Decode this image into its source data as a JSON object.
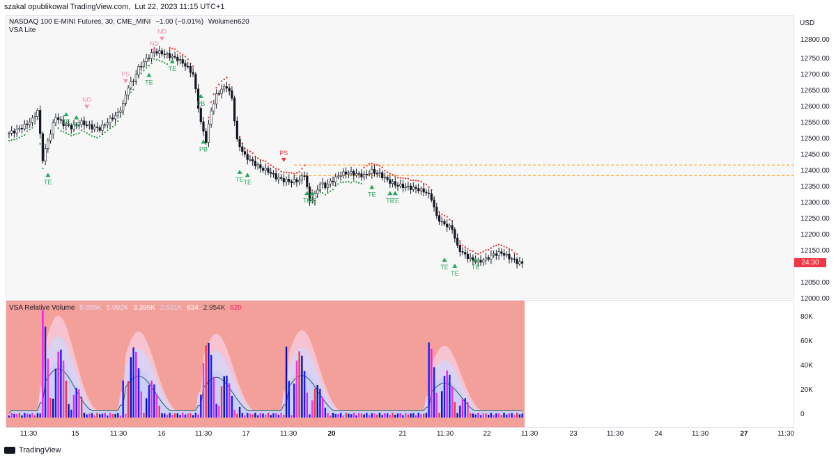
{
  "header": {
    "author": "szakal opublikował TradingView.com,",
    "timestamp": "Lut 22, 2023 11:15 UTC+1"
  },
  "main_legend": {
    "symbol": "NASDAQ 100 E-MINI Futures, 30, CME_MINI",
    "change": "−1.00 (−0.01%)",
    "volume": "Wolumen620",
    "indicator": "VSA Lite"
  },
  "volume_legend": {
    "title": "VSA Relative Volume",
    "values": [
      "5.955K",
      "5.092K",
      "3.395K",
      "2.531K",
      "834",
      "2.954K",
      "620"
    ]
  },
  "price_axis": {
    "currency": "USD",
    "ticks": [
      "12800.00",
      "12750.00",
      "12700.00",
      "12650.00",
      "12600.00",
      "12550.00",
      "12500.00",
      "12450.00",
      "12400.00",
      "12350.00",
      "12300.00",
      "12250.00",
      "12200.00",
      "12150.00",
      "12050.00",
      "12000.00"
    ],
    "last_badge": "24:30"
  },
  "volume_axis": {
    "ticks": [
      "80K",
      "60K",
      "40K",
      "20K",
      "0"
    ]
  },
  "time_axis": {
    "ticks": [
      "11:30",
      "15",
      "11:30",
      "16",
      "11:30",
      "17",
      "11:30",
      "20",
      "21",
      "11:30",
      "22",
      "11:30",
      "23",
      "11:30",
      "24",
      "11:30",
      "27",
      "11:30"
    ],
    "bold": [
      "20",
      "27"
    ]
  },
  "footer": {
    "brand": "TradingView"
  },
  "colors": {
    "up_signal": "#26a65b",
    "down_signal": "#f23645",
    "trail_up": "#2e9e4a",
    "trail_down": "#e53935",
    "vol_bg": "#f4a09a",
    "resistance": "#ff9800"
  },
  "chart_data": [
    {
      "type": "line",
      "title": "NASDAQ 100 E-MINI Futures, 30, CME_MINI",
      "ylim": [
        12000,
        12850
      ],
      "close_path": [
        [
          0,
          12525
        ],
        [
          3,
          12535
        ],
        [
          6,
          12550
        ],
        [
          9,
          12570
        ],
        [
          11,
          12600
        ],
        [
          13,
          12440
        ],
        [
          15,
          12500
        ],
        [
          18,
          12580
        ],
        [
          21,
          12555
        ],
        [
          24,
          12545
        ],
        [
          28,
          12560
        ],
        [
          32,
          12545
        ],
        [
          35,
          12540
        ],
        [
          39,
          12570
        ],
        [
          42,
          12590
        ],
        [
          44,
          12620
        ],
        [
          46,
          12680
        ],
        [
          48,
          12700
        ],
        [
          50,
          12740
        ],
        [
          53,
          12770
        ],
        [
          56,
          12795
        ],
        [
          59,
          12790
        ],
        [
          62,
          12780
        ],
        [
          65,
          12770
        ],
        [
          68,
          12750
        ],
        [
          71,
          12720
        ],
        [
          74,
          12560
        ],
        [
          76,
          12500
        ],
        [
          78,
          12600
        ],
        [
          80,
          12650
        ],
        [
          82,
          12670
        ],
        [
          84,
          12680
        ],
        [
          86,
          12640
        ],
        [
          88,
          12500
        ],
        [
          91,
          12450
        ],
        [
          94,
          12430
        ],
        [
          97,
          12410
        ],
        [
          100,
          12400
        ],
        [
          103,
          12380
        ],
        [
          106,
          12370
        ],
        [
          109,
          12365
        ],
        [
          112,
          12370
        ],
        [
          114,
          12390
        ],
        [
          116,
          12300
        ],
        [
          118,
          12320
        ],
        [
          120,
          12360
        ],
        [
          122,
          12350
        ],
        [
          125,
          12370
        ],
        [
          128,
          12390
        ],
        [
          131,
          12395
        ],
        [
          134,
          12390
        ],
        [
          137,
          12385
        ],
        [
          140,
          12400
        ],
        [
          143,
          12390
        ],
        [
          146,
          12370
        ],
        [
          149,
          12355
        ],
        [
          152,
          12350
        ],
        [
          155,
          12345
        ],
        [
          158,
          12340
        ],
        [
          161,
          12330
        ],
        [
          163,
          12310
        ],
        [
          165,
          12250
        ],
        [
          167,
          12230
        ],
        [
          169,
          12220
        ],
        [
          171,
          12210
        ],
        [
          173,
          12150
        ],
        [
          175,
          12130
        ],
        [
          178,
          12110
        ],
        [
          181,
          12100
        ],
        [
          184,
          12110
        ],
        [
          187,
          12125
        ],
        [
          190,
          12130
        ],
        [
          193,
          12115
        ],
        [
          196,
          12100
        ],
        [
          198,
          12095
        ]
      ],
      "signals": [
        {
          "label": "TE",
          "x": 15,
          "price": 12390,
          "dir": "up"
        },
        {
          "label": "TE",
          "x": 22,
          "price": 12590,
          "dir": "up"
        },
        {
          "label": "TE",
          "x": 26,
          "price": 12580,
          "dir": "up"
        },
        {
          "label": "ND",
          "x": 30,
          "price": 12605,
          "dir": "down"
        },
        {
          "label": "PS",
          "x": 45,
          "price": 12690,
          "dir": "down"
        },
        {
          "label": "TE",
          "x": 54,
          "price": 12720,
          "dir": "up"
        },
        {
          "label": "ND",
          "x": 56,
          "price": 12790,
          "dir": "down"
        },
        {
          "label": "ND",
          "x": 59,
          "price": 12830,
          "dir": "down"
        },
        {
          "label": "TE",
          "x": 63,
          "price": 12765,
          "dir": "up"
        },
        {
          "label": "PB",
          "x": 74,
          "price": 12650,
          "dir": "up"
        },
        {
          "label": "PB",
          "x": 75,
          "price": 12500,
          "dir": "up"
        },
        {
          "label": "TE",
          "x": 89,
          "price": 12400,
          "dir": "up"
        },
        {
          "label": "TE",
          "x": 92,
          "price": 12390,
          "dir": "up"
        },
        {
          "label": "PS",
          "x": 106,
          "price": 12430,
          "dir": "down"
        },
        {
          "label": "TE",
          "x": 115,
          "price": 12330,
          "dir": "up"
        },
        {
          "label": "TE",
          "x": 117,
          "price": 12330,
          "dir": "up"
        },
        {
          "label": "TE",
          "x": 140,
          "price": 12350,
          "dir": "up"
        },
        {
          "label": "TE",
          "x": 147,
          "price": 12330,
          "dir": "up"
        },
        {
          "label": "TE",
          "x": 149,
          "price": 12330,
          "dir": "up"
        },
        {
          "label": "TE",
          "x": 168,
          "price": 12110,
          "dir": "up"
        },
        {
          "label": "TE",
          "x": 172,
          "price": 12090,
          "dir": "up"
        },
        {
          "label": "TE",
          "x": 180,
          "price": 12110,
          "dir": "up"
        }
      ],
      "resistance_levels": [
        12420,
        12385
      ]
    },
    {
      "type": "bar",
      "title": "VSA Relative Volume",
      "ylim": [
        0,
        90000
      ],
      "session_peaks": [
        {
          "x": 14,
          "max": 85000
        },
        {
          "x": 45,
          "max": 72000
        },
        {
          "x": 75,
          "max": 70000
        },
        {
          "x": 108,
          "max": 73000
        },
        {
          "x": 163,
          "max": 60000
        }
      ]
    }
  ]
}
